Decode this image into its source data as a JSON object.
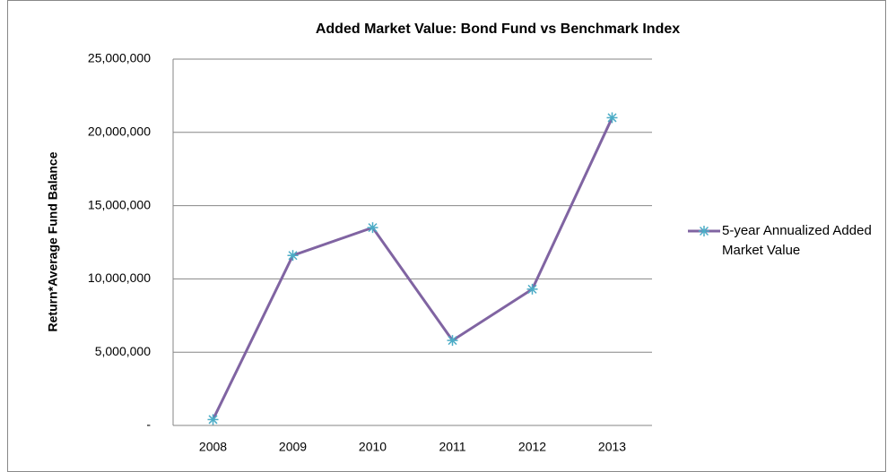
{
  "chart_data": {
    "type": "line",
    "title": "Added Market Value: Bond Fund vs Benchmark Index",
    "y_label": "Return*Average Fund Balance",
    "categories": [
      "2008",
      "2009",
      "2010",
      "2011",
      "2012",
      "2013"
    ],
    "series": [
      {
        "name": "5-year Annualized Added Market Value",
        "color": "#8064a2",
        "marker_color": "#4bacc6",
        "values": [
          400000,
          11600000,
          13500000,
          5800000,
          9300000,
          21000000
        ]
      }
    ],
    "ylim": [
      0,
      25000000
    ],
    "yticks": [
      {
        "value": 0,
        "label": "-"
      },
      {
        "value": 5000000,
        "label": "5,000,000"
      },
      {
        "value": 10000000,
        "label": "10,000,000"
      },
      {
        "value": 15000000,
        "label": "15,000,000"
      },
      {
        "value": 20000000,
        "label": "20,000,000"
      },
      {
        "value": 25000000,
        "label": "25,000,000"
      }
    ],
    "grid": true,
    "legend": "right"
  }
}
